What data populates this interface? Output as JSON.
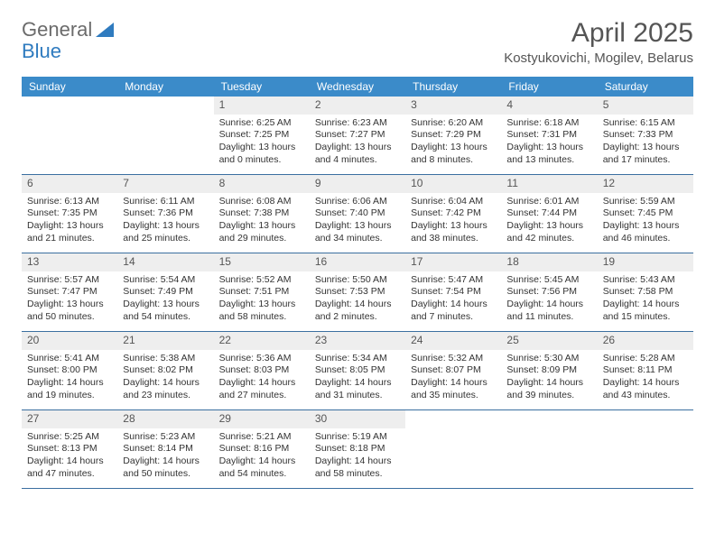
{
  "logo": {
    "text1": "General",
    "text2": "Blue"
  },
  "title": "April 2025",
  "location": "Kostyukovichi, Mogilev, Belarus",
  "colors": {
    "header_bg": "#3b8bc9",
    "header_text": "#ffffff",
    "daynum_bg": "#eeeeee",
    "border": "#3b6fa0",
    "title_color": "#555555",
    "logo_gray": "#6b6b6b",
    "logo_blue": "#2f7bbf"
  },
  "days_of_week": [
    "Sunday",
    "Monday",
    "Tuesday",
    "Wednesday",
    "Thursday",
    "Friday",
    "Saturday"
  ],
  "weeks": [
    [
      null,
      null,
      {
        "n": "1",
        "sr": "Sunrise: 6:25 AM",
        "ss": "Sunset: 7:25 PM",
        "d1": "Daylight: 13 hours",
        "d2": "and 0 minutes."
      },
      {
        "n": "2",
        "sr": "Sunrise: 6:23 AM",
        "ss": "Sunset: 7:27 PM",
        "d1": "Daylight: 13 hours",
        "d2": "and 4 minutes."
      },
      {
        "n": "3",
        "sr": "Sunrise: 6:20 AM",
        "ss": "Sunset: 7:29 PM",
        "d1": "Daylight: 13 hours",
        "d2": "and 8 minutes."
      },
      {
        "n": "4",
        "sr": "Sunrise: 6:18 AM",
        "ss": "Sunset: 7:31 PM",
        "d1": "Daylight: 13 hours",
        "d2": "and 13 minutes."
      },
      {
        "n": "5",
        "sr": "Sunrise: 6:15 AM",
        "ss": "Sunset: 7:33 PM",
        "d1": "Daylight: 13 hours",
        "d2": "and 17 minutes."
      }
    ],
    [
      {
        "n": "6",
        "sr": "Sunrise: 6:13 AM",
        "ss": "Sunset: 7:35 PM",
        "d1": "Daylight: 13 hours",
        "d2": "and 21 minutes."
      },
      {
        "n": "7",
        "sr": "Sunrise: 6:11 AM",
        "ss": "Sunset: 7:36 PM",
        "d1": "Daylight: 13 hours",
        "d2": "and 25 minutes."
      },
      {
        "n": "8",
        "sr": "Sunrise: 6:08 AM",
        "ss": "Sunset: 7:38 PM",
        "d1": "Daylight: 13 hours",
        "d2": "and 29 minutes."
      },
      {
        "n": "9",
        "sr": "Sunrise: 6:06 AM",
        "ss": "Sunset: 7:40 PM",
        "d1": "Daylight: 13 hours",
        "d2": "and 34 minutes."
      },
      {
        "n": "10",
        "sr": "Sunrise: 6:04 AM",
        "ss": "Sunset: 7:42 PM",
        "d1": "Daylight: 13 hours",
        "d2": "and 38 minutes."
      },
      {
        "n": "11",
        "sr": "Sunrise: 6:01 AM",
        "ss": "Sunset: 7:44 PM",
        "d1": "Daylight: 13 hours",
        "d2": "and 42 minutes."
      },
      {
        "n": "12",
        "sr": "Sunrise: 5:59 AM",
        "ss": "Sunset: 7:45 PM",
        "d1": "Daylight: 13 hours",
        "d2": "and 46 minutes."
      }
    ],
    [
      {
        "n": "13",
        "sr": "Sunrise: 5:57 AM",
        "ss": "Sunset: 7:47 PM",
        "d1": "Daylight: 13 hours",
        "d2": "and 50 minutes."
      },
      {
        "n": "14",
        "sr": "Sunrise: 5:54 AM",
        "ss": "Sunset: 7:49 PM",
        "d1": "Daylight: 13 hours",
        "d2": "and 54 minutes."
      },
      {
        "n": "15",
        "sr": "Sunrise: 5:52 AM",
        "ss": "Sunset: 7:51 PM",
        "d1": "Daylight: 13 hours",
        "d2": "and 58 minutes."
      },
      {
        "n": "16",
        "sr": "Sunrise: 5:50 AM",
        "ss": "Sunset: 7:53 PM",
        "d1": "Daylight: 14 hours",
        "d2": "and 2 minutes."
      },
      {
        "n": "17",
        "sr": "Sunrise: 5:47 AM",
        "ss": "Sunset: 7:54 PM",
        "d1": "Daylight: 14 hours",
        "d2": "and 7 minutes."
      },
      {
        "n": "18",
        "sr": "Sunrise: 5:45 AM",
        "ss": "Sunset: 7:56 PM",
        "d1": "Daylight: 14 hours",
        "d2": "and 11 minutes."
      },
      {
        "n": "19",
        "sr": "Sunrise: 5:43 AM",
        "ss": "Sunset: 7:58 PM",
        "d1": "Daylight: 14 hours",
        "d2": "and 15 minutes."
      }
    ],
    [
      {
        "n": "20",
        "sr": "Sunrise: 5:41 AM",
        "ss": "Sunset: 8:00 PM",
        "d1": "Daylight: 14 hours",
        "d2": "and 19 minutes."
      },
      {
        "n": "21",
        "sr": "Sunrise: 5:38 AM",
        "ss": "Sunset: 8:02 PM",
        "d1": "Daylight: 14 hours",
        "d2": "and 23 minutes."
      },
      {
        "n": "22",
        "sr": "Sunrise: 5:36 AM",
        "ss": "Sunset: 8:03 PM",
        "d1": "Daylight: 14 hours",
        "d2": "and 27 minutes."
      },
      {
        "n": "23",
        "sr": "Sunrise: 5:34 AM",
        "ss": "Sunset: 8:05 PM",
        "d1": "Daylight: 14 hours",
        "d2": "and 31 minutes."
      },
      {
        "n": "24",
        "sr": "Sunrise: 5:32 AM",
        "ss": "Sunset: 8:07 PM",
        "d1": "Daylight: 14 hours",
        "d2": "and 35 minutes."
      },
      {
        "n": "25",
        "sr": "Sunrise: 5:30 AM",
        "ss": "Sunset: 8:09 PM",
        "d1": "Daylight: 14 hours",
        "d2": "and 39 minutes."
      },
      {
        "n": "26",
        "sr": "Sunrise: 5:28 AM",
        "ss": "Sunset: 8:11 PM",
        "d1": "Daylight: 14 hours",
        "d2": "and 43 minutes."
      }
    ],
    [
      {
        "n": "27",
        "sr": "Sunrise: 5:25 AM",
        "ss": "Sunset: 8:13 PM",
        "d1": "Daylight: 14 hours",
        "d2": "and 47 minutes."
      },
      {
        "n": "28",
        "sr": "Sunrise: 5:23 AM",
        "ss": "Sunset: 8:14 PM",
        "d1": "Daylight: 14 hours",
        "d2": "and 50 minutes."
      },
      {
        "n": "29",
        "sr": "Sunrise: 5:21 AM",
        "ss": "Sunset: 8:16 PM",
        "d1": "Daylight: 14 hours",
        "d2": "and 54 minutes."
      },
      {
        "n": "30",
        "sr": "Sunrise: 5:19 AM",
        "ss": "Sunset: 8:18 PM",
        "d1": "Daylight: 14 hours",
        "d2": "and 58 minutes."
      },
      null,
      null,
      null
    ]
  ]
}
